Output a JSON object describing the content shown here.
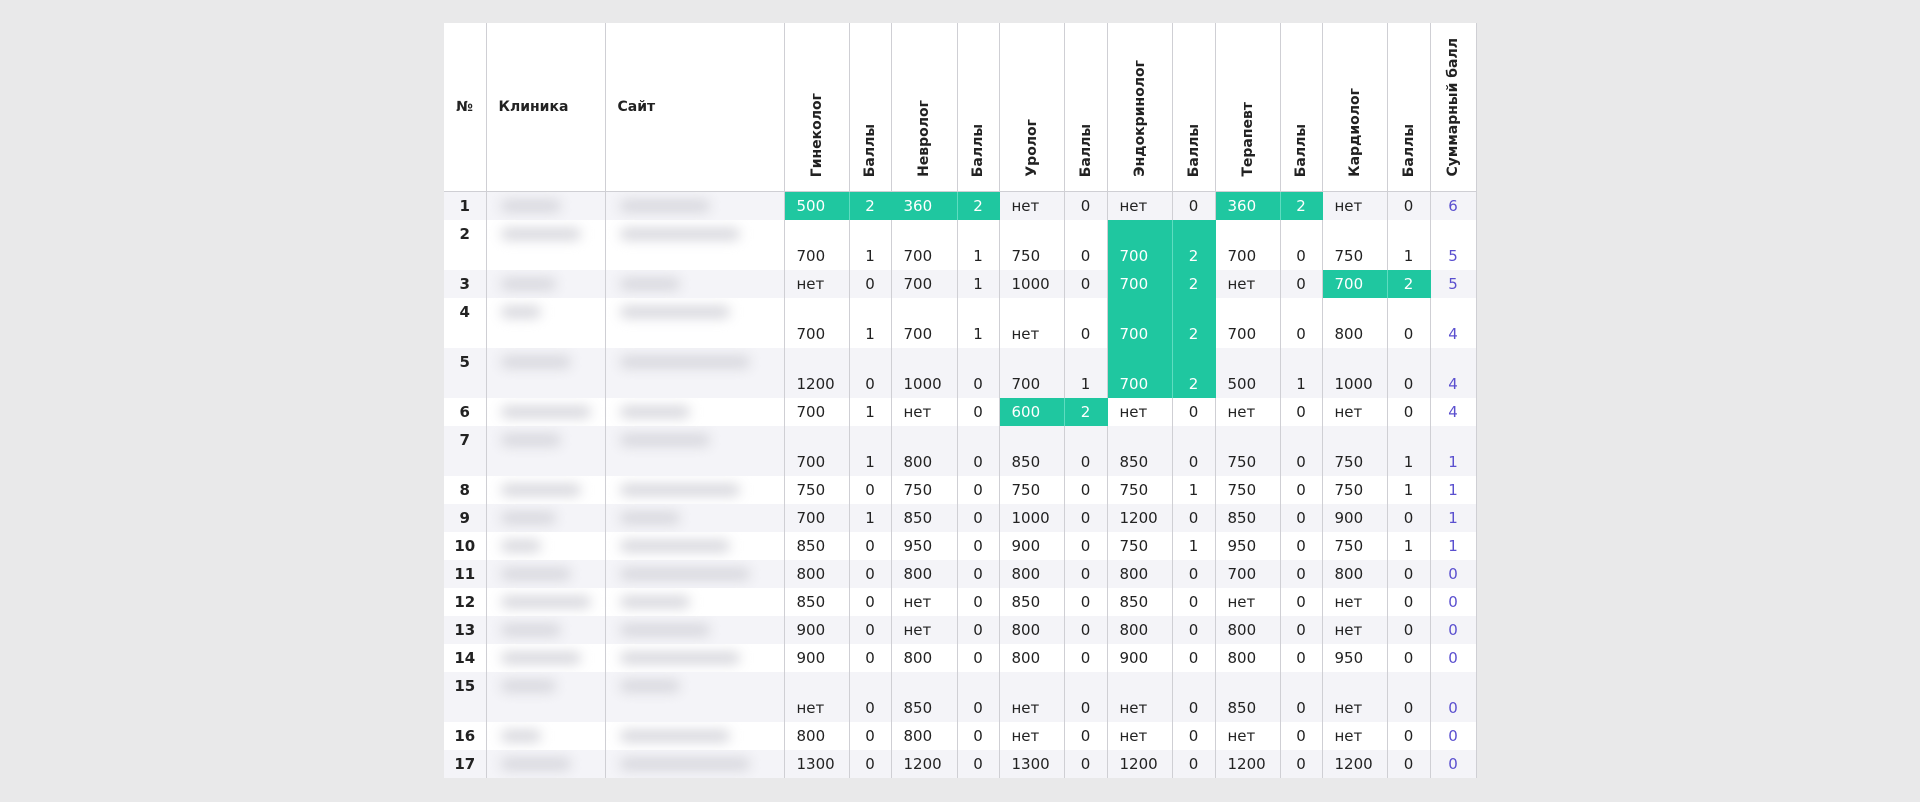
{
  "header": {
    "number": "№",
    "clinic": "Клиника",
    "site": "Сайт",
    "specialties": [
      "Гинеколог",
      "Невролог",
      "Уролог",
      "Эндокринолог",
      "Терапевт",
      "Кардиолог"
    ],
    "score": "Баллы",
    "total": "Суммарный балл"
  },
  "rows": [
    {
      "number": "1",
      "prices": [
        "500",
        "360",
        "нет",
        "нет",
        "360",
        "нет"
      ],
      "scores": [
        "2",
        "2",
        "0",
        "0",
        "2",
        "0"
      ],
      "total": "6",
      "highlight": [
        0,
        1,
        4
      ]
    },
    {
      "number": "2",
      "prices": [
        "700",
        "700",
        "750",
        "700",
        "700",
        "750"
      ],
      "scores": [
        "1",
        "1",
        "0",
        "2",
        "0",
        "1"
      ],
      "total": "5",
      "highlight": [
        3
      ]
    },
    {
      "number": "3",
      "prices": [
        "нет",
        "700",
        "1000",
        "700",
        "нет",
        "700"
      ],
      "scores": [
        "0",
        "1",
        "0",
        "2",
        "0",
        "2"
      ],
      "total": "5",
      "highlight": [
        3,
        5
      ]
    },
    {
      "number": "4",
      "prices": [
        "700",
        "700",
        "нет",
        "700",
        "700",
        "800"
      ],
      "scores": [
        "1",
        "1",
        "0",
        "2",
        "0",
        "0"
      ],
      "total": "4",
      "highlight": [
        3
      ]
    },
    {
      "number": "5",
      "prices": [
        "1200",
        "1000",
        "700",
        "700",
        "500",
        "1000"
      ],
      "scores": [
        "0",
        "0",
        "1",
        "2",
        "1",
        "0"
      ],
      "total": "4",
      "highlight": [
        3
      ]
    },
    {
      "number": "6",
      "prices": [
        "700",
        "нет",
        "600",
        "нет",
        "нет",
        "нет"
      ],
      "scores": [
        "1",
        "0",
        "2",
        "0",
        "0",
        "0"
      ],
      "total": "4",
      "highlight": [
        2
      ]
    },
    {
      "number": "7",
      "prices": [
        "700",
        "800",
        "850",
        "850",
        "750",
        "750"
      ],
      "scores": [
        "1",
        "0",
        "0",
        "0",
        "0",
        "1"
      ],
      "total": "1",
      "highlight": []
    },
    {
      "number": "8",
      "prices": [
        "750",
        "750",
        "750",
        "750",
        "750",
        "750"
      ],
      "scores": [
        "0",
        "0",
        "0",
        "1",
        "0",
        "1"
      ],
      "total": "1",
      "highlight": []
    },
    {
      "number": "9",
      "prices": [
        "700",
        "850",
        "1000",
        "1200",
        "850",
        "900"
      ],
      "scores": [
        "1",
        "0",
        "0",
        "0",
        "0",
        "0"
      ],
      "total": "1",
      "highlight": []
    },
    {
      "number": "10",
      "prices": [
        "850",
        "950",
        "900",
        "750",
        "950",
        "750"
      ],
      "scores": [
        "0",
        "0",
        "0",
        "1",
        "0",
        "1"
      ],
      "total": "1",
      "highlight": []
    },
    {
      "number": "11",
      "prices": [
        "800",
        "800",
        "800",
        "800",
        "700",
        "800"
      ],
      "scores": [
        "0",
        "0",
        "0",
        "0",
        "0",
        "0"
      ],
      "total": "0",
      "highlight": []
    },
    {
      "number": "12",
      "prices": [
        "850",
        "нет",
        "850",
        "850",
        "нет",
        "нет"
      ],
      "scores": [
        "0",
        "0",
        "0",
        "0",
        "0",
        "0"
      ],
      "total": "0",
      "highlight": []
    },
    {
      "number": "13",
      "prices": [
        "900",
        "нет",
        "800",
        "800",
        "800",
        "нет"
      ],
      "scores": [
        "0",
        "0",
        "0",
        "0",
        "0",
        "0"
      ],
      "total": "0",
      "highlight": []
    },
    {
      "number": "14",
      "prices": [
        "900",
        "800",
        "800",
        "900",
        "800",
        "950"
      ],
      "scores": [
        "0",
        "0",
        "0",
        "0",
        "0",
        "0"
      ],
      "total": "0",
      "highlight": []
    },
    {
      "number": "15",
      "prices": [
        "нет",
        "850",
        "нет",
        "нет",
        "850",
        "нет"
      ],
      "scores": [
        "0",
        "0",
        "0",
        "0",
        "0",
        "0"
      ],
      "total": "0",
      "highlight": []
    },
    {
      "number": "16",
      "prices": [
        "800",
        "800",
        "нет",
        "нет",
        "нет",
        "нет"
      ],
      "scores": [
        "0",
        "0",
        "0",
        "0",
        "0",
        "0"
      ],
      "total": "0",
      "highlight": []
    },
    {
      "number": "17",
      "prices": [
        "1300",
        "1200",
        "1300",
        "1200",
        "1200",
        "1200"
      ],
      "scores": [
        "0",
        "0",
        "0",
        "0",
        "0",
        "0"
      ],
      "total": "0",
      "highlight": []
    }
  ]
}
